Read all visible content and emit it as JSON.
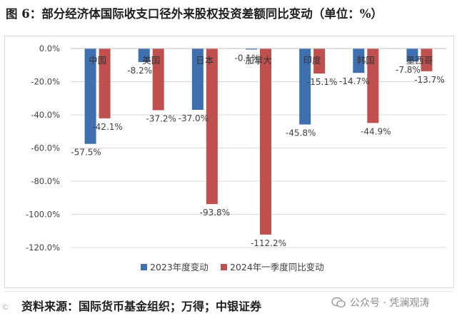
{
  "figure": {
    "title": "图 6：部分经济体国际收支口径外来股权投资差额同比变动（单位：%）",
    "source": "资料来源：国际货币基金组织；万得；中银证券",
    "watermark": "公众号 · 凭澜观涛",
    "corner_mark": "©"
  },
  "colors": {
    "series_2023": "#3e6fb0",
    "series_2024q1": "#c0504d",
    "grid": "#d9d9d9",
    "text": "#404040"
  },
  "chart_data": {
    "type": "bar",
    "categories": [
      "中国",
      "美国",
      "日本",
      "加拿大",
      "印度",
      "韩国",
      "墨西哥"
    ],
    "series": [
      {
        "name": "2023年度变动",
        "values": [
          -57.5,
          -8.2,
          -37.0,
          -0.1,
          -45.8,
          -14.7,
          -7.8
        ],
        "labels": [
          "-57.5%",
          "-8.2%",
          "-37.0%",
          "-0.1%",
          "-45.8%",
          "-14.7%",
          "-7.8%"
        ]
      },
      {
        "name": "2024年一季度同比变动",
        "values": [
          -42.1,
          -37.2,
          -93.8,
          -112.2,
          -15.1,
          -44.9,
          -13.7
        ],
        "labels": [
          "-42.1%",
          "-37.2%",
          "-93.8%",
          "-112.2%",
          "-15.1%",
          "-44.9%",
          "-13.7%"
        ]
      }
    ],
    "ylim": [
      -120,
      0
    ],
    "yticks": [
      0,
      -20,
      -40,
      -60,
      -80,
      -100,
      -120
    ],
    "ytick_labels": [
      "0.0%",
      "-20.0%",
      "-40.0%",
      "-60.0%",
      "-80.0%",
      "-100.0%",
      "-120.0%"
    ],
    "grid": true,
    "legend_position": "bottom"
  }
}
